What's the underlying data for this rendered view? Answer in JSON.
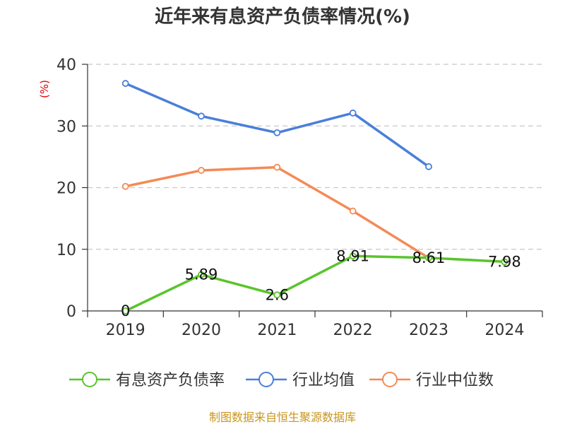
{
  "chart_data": {
    "type": "line",
    "title": "近年来有息资产负债率情况(%)",
    "ylabel": "(%)",
    "xlabel": "",
    "categories": [
      "2019",
      "2020",
      "2021",
      "2022",
      "2023",
      "2024"
    ],
    "ylim": [
      0,
      40
    ],
    "yticks": [
      0,
      10,
      20,
      30,
      40
    ],
    "grid": true,
    "legend_position": "bottom",
    "series": [
      {
        "name": "有息资产负债率",
        "color": "#5ac42c",
        "values": [
          0,
          5.89,
          2.6,
          8.91,
          8.61,
          7.98
        ],
        "data_labels": [
          "0",
          "5.89",
          "2.6",
          "8.91",
          "8.61",
          "7.98"
        ]
      },
      {
        "name": "行业均值",
        "color": "#4a7fd9",
        "values": [
          36.9,
          31.6,
          28.9,
          32.1,
          23.4,
          null
        ]
      },
      {
        "name": "行业中位数",
        "color": "#f48a56",
        "values": [
          20.2,
          22.8,
          23.3,
          16.2,
          8.6,
          null
        ]
      }
    ]
  },
  "source": "制图数据来自恒生聚源数据库"
}
